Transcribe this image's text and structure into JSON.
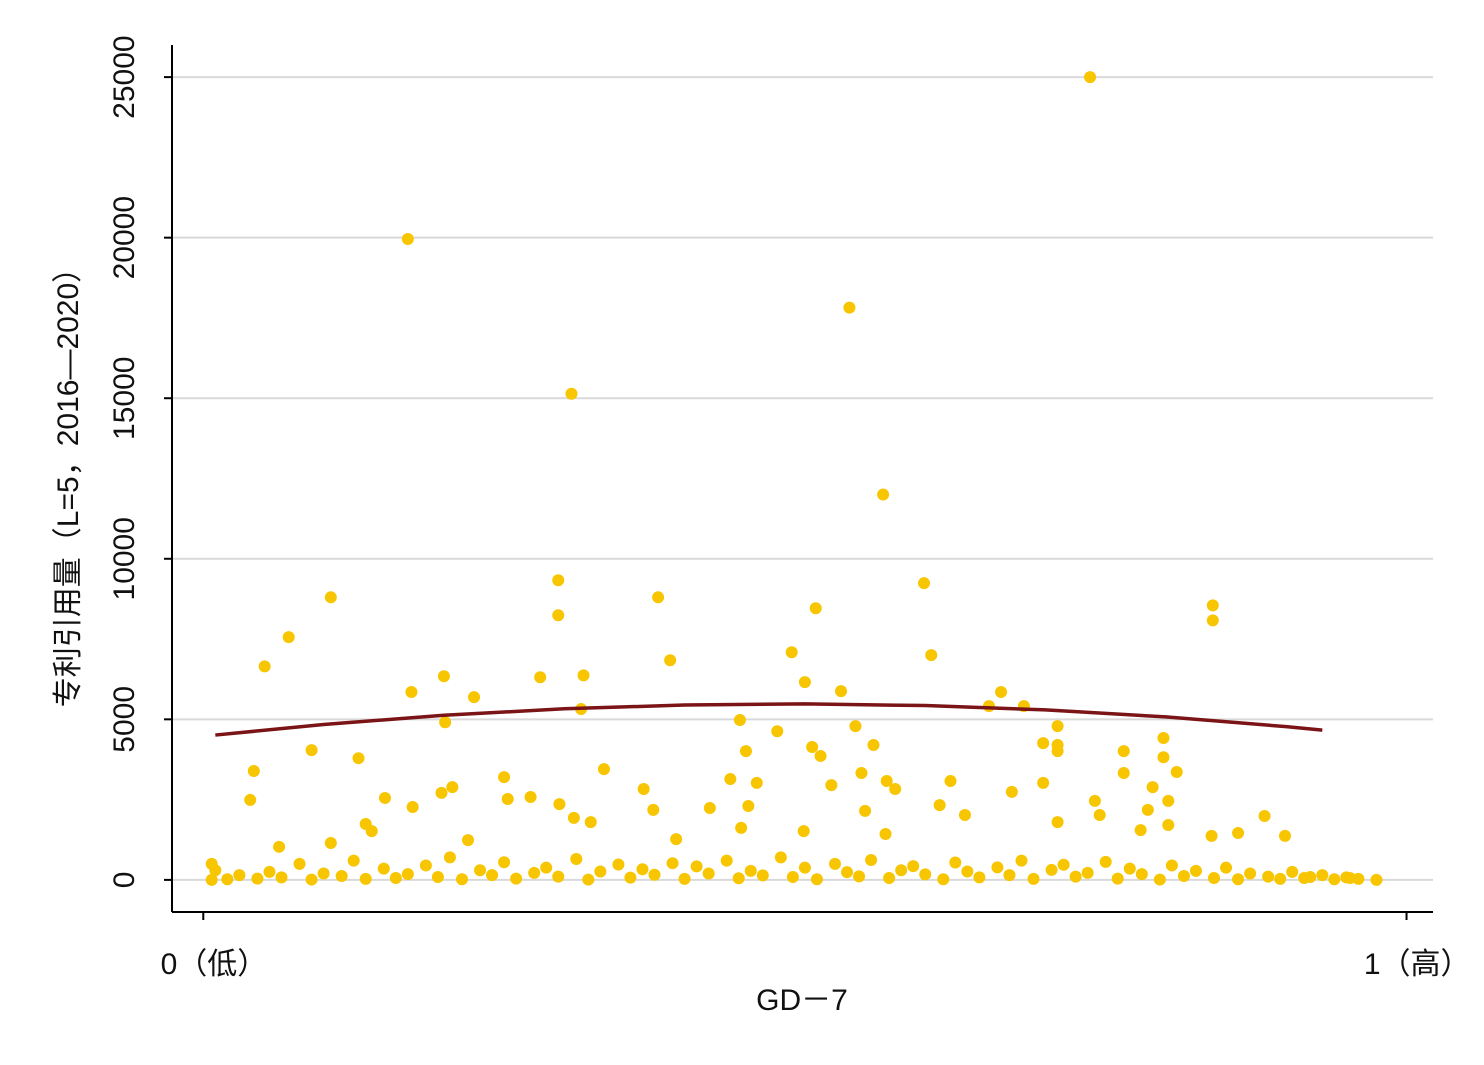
{
  "chart_data": {
    "type": "scatter",
    "x_label": "GD－7",
    "y_label": "专利引用量（L=5，2016—2020）",
    "xlim": [
      -0.026,
      1.022
    ],
    "ylim": [
      -1000,
      26000
    ],
    "xticks": [
      {
        "value": 0,
        "label": "0（低）"
      },
      {
        "value": 1,
        "label": "1（高）"
      }
    ],
    "yticks": [
      0,
      5000,
      10000,
      15000,
      20000,
      25000
    ],
    "grid": true,
    "series": [
      {
        "type": "scatter",
        "color": "#f7c600",
        "x": [
          0.737,
          0.17,
          0.537,
          0.306,
          0.565,
          0.295,
          0.599,
          0.106,
          0.378,
          0.839,
          0.295,
          0.509,
          0.839,
          0.071,
          0.489,
          0.605,
          0.388,
          0.051,
          0.2,
          0.28,
          0.316,
          0.5,
          0.53,
          0.663,
          0.173,
          0.225,
          0.653,
          0.682,
          0.314,
          0.446,
          0.201,
          0.542,
          0.71,
          0.477,
          0.798,
          0.698,
          0.71,
          0.557,
          0.09,
          0.506,
          0.451,
          0.71,
          0.765,
          0.513,
          0.798,
          0.129,
          0.042,
          0.333,
          0.547,
          0.765,
          0.809,
          0.25,
          0.438,
          0.621,
          0.568,
          0.46,
          0.698,
          0.207,
          0.522,
          0.366,
          0.575,
          0.789,
          0.672,
          0.198,
          0.151,
          0.272,
          0.253,
          0.741,
          0.802,
          0.039,
          0.296,
          0.612,
          0.453,
          0.174,
          0.421,
          0.785,
          0.55,
          0.374,
          0.745,
          0.882,
          0.633,
          0.308,
          0.322,
          0.135,
          0.802,
          0.71,
          0.447,
          0.14,
          0.779,
          0.86,
          0.499,
          0.567,
          0.899,
          0.22,
          0.106,
          0.838,
          0.063,
          0.393,
          0.007,
          0.007,
          0.975,
          0.953,
          0.92,
          0.01,
          0.02,
          0.03,
          0.045,
          0.055,
          0.065,
          0.08,
          0.09,
          0.1,
          0.115,
          0.125,
          0.135,
          0.15,
          0.16,
          0.17,
          0.185,
          0.195,
          0.205,
          0.215,
          0.23,
          0.24,
          0.25,
          0.26,
          0.275,
          0.285,
          0.295,
          0.31,
          0.32,
          0.33,
          0.345,
          0.355,
          0.365,
          0.375,
          0.39,
          0.4,
          0.41,
          0.42,
          0.435,
          0.445,
          0.455,
          0.465,
          0.48,
          0.49,
          0.5,
          0.51,
          0.525,
          0.535,
          0.545,
          0.555,
          0.57,
          0.58,
          0.59,
          0.6,
          0.615,
          0.625,
          0.635,
          0.645,
          0.66,
          0.67,
          0.68,
          0.69,
          0.705,
          0.715,
          0.725,
          0.735,
          0.75,
          0.76,
          0.77,
          0.78,
          0.795,
          0.805,
          0.815,
          0.825,
          0.84,
          0.85,
          0.86,
          0.87,
          0.885,
          0.895,
          0.905,
          0.915,
          0.93,
          0.94,
          0.95,
          0.96
        ],
        "values": [
          25000,
          19960,
          17820,
          15140,
          12000,
          9330,
          9240,
          8800,
          8800,
          8550,
          8240,
          8460,
          8080,
          7560,
          7090,
          7000,
          6840,
          6650,
          6340,
          6310,
          6370,
          6160,
          5880,
          5850,
          5850,
          5690,
          5410,
          5410,
          5320,
          4980,
          4910,
          4790,
          4790,
          4630,
          4420,
          4260,
          4200,
          4200,
          4040,
          4140,
          4010,
          4010,
          4010,
          3860,
          3820,
          3790,
          3390,
          3450,
          3330,
          3330,
          3360,
          3200,
          3140,
          3080,
          3080,
          3020,
          3020,
          2890,
          2950,
          2830,
          2830,
          2890,
          2740,
          2710,
          2550,
          2580,
          2520,
          2460,
          2460,
          2490,
          2360,
          2330,
          2300,
          2270,
          2240,
          2180,
          2150,
          2180,
          2020,
          1990,
          2020,
          1930,
          1800,
          1740,
          1710,
          1800,
          1620,
          1520,
          1550,
          1460,
          1520,
          1430,
          1370,
          1240,
          1150,
          1370,
          1030,
          1270,
          500,
          0,
          0,
          60,
          90,
          300,
          20,
          150,
          40,
          250,
          80,
          500,
          10,
          200,
          120,
          600,
          30,
          350,
          60,
          180,
          450,
          90,
          700,
          20,
          300,
          150,
          550,
          40,
          220,
          380,
          100,
          650,
          10,
          260,
          480,
          70,
          330,
          160,
          520,
          30,
          420,
          200,
          600,
          50,
          280,
          140,
          700,
          90,
          380,
          20,
          500,
          240,
          110,
          620,
          60,
          300,
          430,
          170,
          20,
          540,
          260,
          80,
          390,
          150,
          600,
          30,
          310,
          470,
          100,
          220,
          560,
          40,
          350,
          180,
          10,
          450,
          120,
          280,
          60,
          380,
          20,
          200,
          100,
          30,
          250,
          60,
          150,
          20,
          80,
          30
        ]
      },
      {
        "type": "line",
        "color": "#7b1416",
        "x": [
          0.01,
          0.1,
          0.2,
          0.3,
          0.4,
          0.5,
          0.6,
          0.7,
          0.8,
          0.9,
          0.93
        ],
        "values": [
          4510,
          4840,
          5126,
          5328,
          5446,
          5480,
          5429,
          5294,
          5075,
          4772,
          4665
        ]
      }
    ]
  }
}
